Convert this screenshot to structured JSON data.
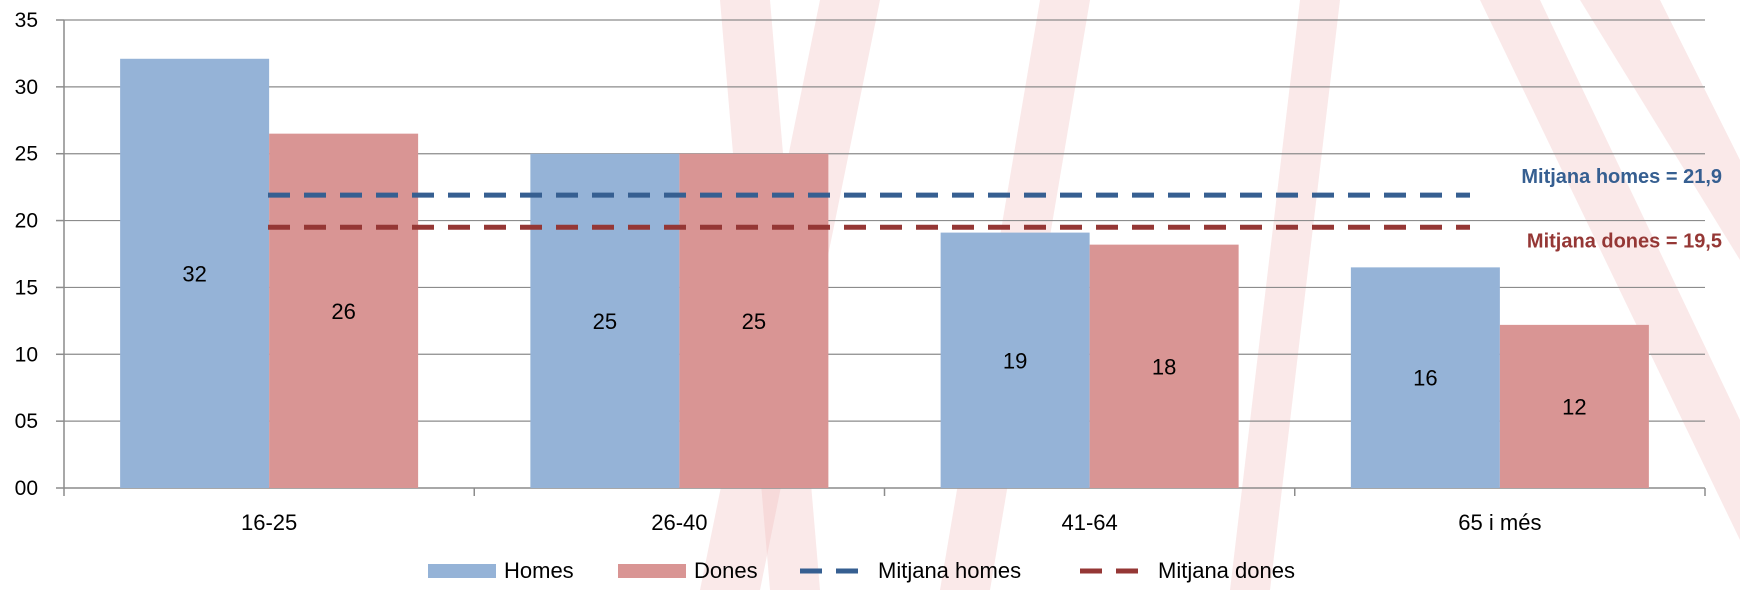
{
  "chart_data": {
    "type": "bar",
    "categories": [
      "16-25",
      "26-40",
      "41-64",
      "65 i més"
    ],
    "series": [
      {
        "name": "Homes",
        "values": [
          32,
          25,
          19,
          16
        ],
        "plot_values": [
          32.1,
          25.0,
          19.1,
          16.5
        ],
        "color": "#95B3D7"
      },
      {
        "name": "Dones",
        "values": [
          26,
          25,
          18,
          12
        ],
        "plot_values": [
          26.5,
          25.0,
          18.2,
          12.2
        ],
        "color": "#D99594"
      }
    ],
    "reference_lines": [
      {
        "name": "Mitjana homes",
        "value": 21.9,
        "label": "Mitjana homes = 21,9",
        "color": "#365F91",
        "style": "dashed"
      },
      {
        "name": "Mitjana dones",
        "value": 19.5,
        "label": "Mitjana dones = 19,5",
        "color": "#953735",
        "style": "dashed"
      }
    ],
    "y_tick_labels": [
      "00",
      "05",
      "10",
      "15",
      "20",
      "25",
      "30",
      "35"
    ],
    "ylim": [
      0,
      35
    ],
    "grid": true,
    "legend_position": "bottom",
    "legend": [
      "Homes",
      "Dones",
      "Mitjana homes",
      "Mitjana dones"
    ],
    "title": "",
    "xlabel": "",
    "ylabel": ""
  },
  "background_watermark": {
    "color": "#F2C0C0"
  }
}
